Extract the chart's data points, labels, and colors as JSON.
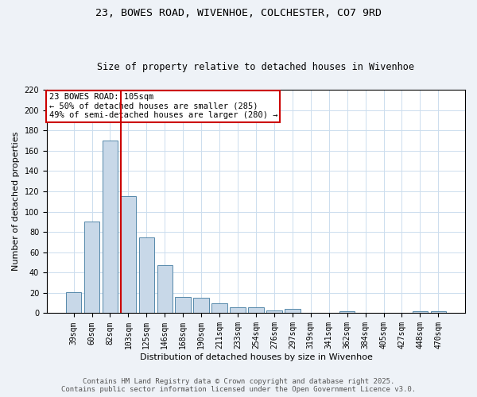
{
  "title": "23, BOWES ROAD, WIVENHOE, COLCHESTER, CO7 9RD",
  "subtitle": "Size of property relative to detached houses in Wivenhoe",
  "xlabel": "Distribution of detached houses by size in Wivenhoe",
  "ylabel": "Number of detached properties",
  "categories": [
    "39sqm",
    "60sqm",
    "82sqm",
    "103sqm",
    "125sqm",
    "146sqm",
    "168sqm",
    "190sqm",
    "211sqm",
    "233sqm",
    "254sqm",
    "276sqm",
    "297sqm",
    "319sqm",
    "341sqm",
    "362sqm",
    "384sqm",
    "405sqm",
    "427sqm",
    "448sqm",
    "470sqm"
  ],
  "values": [
    21,
    90,
    170,
    115,
    75,
    47,
    16,
    15,
    10,
    6,
    6,
    3,
    4,
    0,
    0,
    2,
    0,
    0,
    0,
    2,
    2
  ],
  "bar_color": "#c8d8e8",
  "bar_edge_color": "#5588aa",
  "red_line_x": 2.58,
  "annotation_text": "23 BOWES ROAD: 105sqm\n← 50% of detached houses are smaller (285)\n49% of semi-detached houses are larger (280) →",
  "annotation_box_color": "#ffffff",
  "annotation_box_edge_color": "#cc0000",
  "red_line_color": "#cc0000",
  "ylim": [
    0,
    220
  ],
  "yticks": [
    0,
    20,
    40,
    60,
    80,
    100,
    120,
    140,
    160,
    180,
    200,
    220
  ],
  "footer_line1": "Contains HM Land Registry data © Crown copyright and database right 2025.",
  "footer_line2": "Contains public sector information licensed under the Open Government Licence v3.0.",
  "bg_color": "#eef2f7",
  "plot_bg_color": "#ffffff",
  "title_fontsize": 9.5,
  "subtitle_fontsize": 8.5,
  "axis_label_fontsize": 8,
  "tick_fontsize": 7,
  "annotation_fontsize": 7.5,
  "footer_fontsize": 6.5
}
